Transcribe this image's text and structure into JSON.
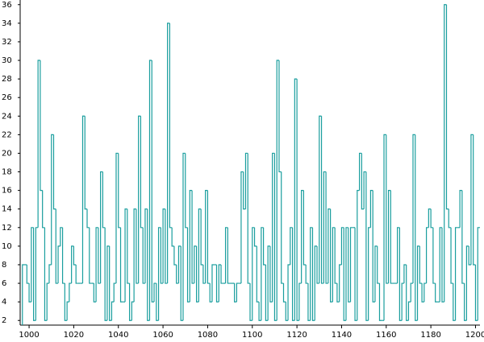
{
  "chart_data": {
    "type": "histogram",
    "color": "#1a9e9e",
    "bins": [
      997,
      998,
      999,
      1000,
      1001,
      1002,
      1003,
      1004,
      1005,
      1006,
      1007,
      1008,
      1009,
      1010,
      1011,
      1012,
      1013,
      1014,
      1015,
      1016,
      1017,
      1018,
      1019,
      1020,
      1021,
      1022,
      1023,
      1024,
      1025,
      1026,
      1027,
      1028,
      1029,
      1030,
      1031,
      1032,
      1033,
      1034,
      1035,
      1036,
      1037,
      1038,
      1039,
      1040,
      1041,
      1042,
      1043,
      1044,
      1045,
      1046,
      1047,
      1048,
      1049,
      1050,
      1051,
      1052,
      1053,
      1054,
      1055,
      1056,
      1057,
      1058,
      1059,
      1060,
      1061,
      1062,
      1063,
      1064,
      1065,
      1066,
      1067,
      1068,
      1069,
      1070,
      1071,
      1072,
      1073,
      1074,
      1075,
      1076,
      1077,
      1078,
      1079,
      1080,
      1081,
      1082,
      1083,
      1084,
      1085,
      1086,
      1087,
      1088,
      1089,
      1090,
      1091,
      1092,
      1093,
      1094,
      1095,
      1096,
      1097,
      1098,
      1099,
      1100,
      1101,
      1102,
      1103,
      1104,
      1105,
      1106,
      1107,
      1108,
      1109,
      1110,
      1111,
      1112,
      1113,
      1114,
      1115,
      1116,
      1117,
      1118,
      1119,
      1120,
      1121,
      1122,
      1123,
      1124,
      1125,
      1126,
      1127,
      1128,
      1129,
      1130,
      1131,
      1132,
      1133,
      1134,
      1135,
      1136,
      1137,
      1138,
      1139,
      1140,
      1141,
      1142,
      1143,
      1144,
      1145,
      1146,
      1147,
      1148,
      1149,
      1150,
      1151,
      1152,
      1153,
      1154,
      1155,
      1156,
      1157,
      1158,
      1159,
      1160,
      1161,
      1162,
      1163,
      1164,
      1165,
      1166,
      1167,
      1168,
      1169,
      1170,
      1171,
      1172,
      1173,
      1174,
      1175,
      1176,
      1177,
      1178,
      1179,
      1180,
      1181,
      1182,
      1183,
      1184,
      1185,
      1186,
      1187,
      1188,
      1189,
      1190,
      1191,
      1192,
      1193,
      1194,
      1195,
      1196,
      1197,
      1198,
      1199,
      1200,
      1201,
      1202
    ],
    "values": [
      8,
      8,
      6,
      4,
      12,
      2,
      12,
      30,
      16,
      12,
      2,
      6,
      8,
      22,
      14,
      6,
      10,
      12,
      6,
      2,
      4,
      6,
      10,
      8,
      6,
      6,
      6,
      24,
      14,
      12,
      6,
      6,
      4,
      12,
      6,
      18,
      12,
      2,
      10,
      2,
      4,
      6,
      20,
      12,
      4,
      4,
      14,
      6,
      2,
      4,
      14,
      6,
      24,
      12,
      6,
      14,
      2,
      30,
      4,
      6,
      2,
      12,
      6,
      14,
      6,
      34,
      12,
      10,
      8,
      6,
      10,
      2,
      20,
      12,
      4,
      16,
      6,
      10,
      4,
      14,
      8,
      6,
      16,
      6,
      4,
      8,
      8,
      4,
      8,
      6,
      6,
      12,
      6,
      6,
      6,
      4,
      6,
      6,
      18,
      14,
      20,
      6,
      2,
      12,
      10,
      4,
      2,
      12,
      8,
      2,
      10,
      4,
      20,
      2,
      30,
      18,
      6,
      4,
      2,
      8,
      12,
      2,
      28,
      2,
      6,
      16,
      8,
      6,
      2,
      12,
      2,
      10,
      6,
      24,
      6,
      18,
      6,
      14,
      4,
      12,
      6,
      4,
      8,
      12,
      2,
      12,
      4,
      12,
      12,
      2,
      16,
      20,
      14,
      18,
      2,
      12,
      16,
      4,
      10,
      6,
      2,
      2,
      22,
      6,
      16,
      6,
      6,
      6,
      12,
      2,
      6,
      8,
      2,
      4,
      6,
      22,
      2,
      10,
      6,
      4,
      6,
      12,
      14,
      12,
      6,
      4,
      4,
      12,
      4,
      36,
      14,
      12,
      6,
      2,
      12,
      12,
      16,
      6,
      2,
      10,
      8,
      22,
      8,
      2,
      12
    ],
    "xlim": [
      996,
      1202
    ],
    "ylim": [
      1.5,
      36.5
    ],
    "xticks": [
      1000,
      1020,
      1040,
      1060,
      1080,
      1100,
      1120,
      1140,
      1160,
      1180,
      1200
    ],
    "yticks": [
      2,
      4,
      6,
      8,
      10,
      12,
      14,
      16,
      18,
      20,
      22,
      24,
      26,
      28,
      30,
      32,
      34,
      36
    ]
  }
}
